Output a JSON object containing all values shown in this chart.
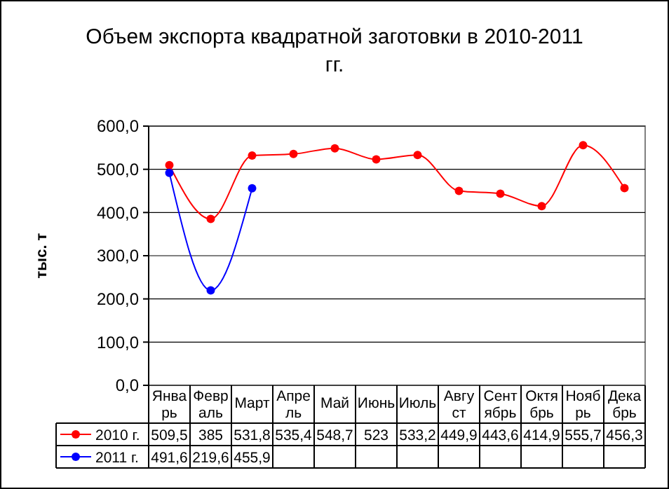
{
  "chart_data": {
    "type": "line",
    "title": "Объем экспорта квадратной заготовки в 2010-2011 гг.",
    "ylabel": "тыс. т",
    "categories": [
      "Январь",
      "Февраль",
      "Март",
      "Апрель",
      "Май",
      "Июнь",
      "Июль",
      "Август",
      "Сентябрь",
      "Октябрь",
      "Ноябрь",
      "Декабрь"
    ],
    "series": [
      {
        "name": "2010 г.",
        "color": "#ff0000",
        "values": [
          509.5,
          385,
          531.8,
          535.4,
          548.7,
          523,
          533.2,
          449.9,
          443.6,
          414.9,
          555.7,
          456.3
        ],
        "value_labels": [
          "509,5",
          "385",
          "531,8",
          "535,4",
          "548,7",
          "523",
          "533,2",
          "449,9",
          "443,6",
          "414,9",
          "555,7",
          "456,3"
        ]
      },
      {
        "name": "2011 г.",
        "color": "#0000ff",
        "values": [
          491.6,
          219.6,
          455.9,
          null,
          null,
          null,
          null,
          null,
          null,
          null,
          null,
          null
        ],
        "value_labels": [
          "491,6",
          "219,6",
          "455,9",
          null,
          null,
          null,
          null,
          null,
          null,
          null,
          null,
          null
        ]
      }
    ],
    "ylim": [
      0,
      600
    ],
    "yticks": [
      {
        "value": 0,
        "label": "0,0"
      },
      {
        "value": 100,
        "label": "100,0"
      },
      {
        "value": 200,
        "label": "200,0"
      },
      {
        "value": 300,
        "label": "300,0"
      },
      {
        "value": 400,
        "label": "400,0"
      },
      {
        "value": 500,
        "label": "500,0"
      },
      {
        "value": 600,
        "label": "600,0"
      }
    ],
    "grid": "y",
    "marker": "circle",
    "line_style": "solid",
    "legend": "bottom"
  }
}
